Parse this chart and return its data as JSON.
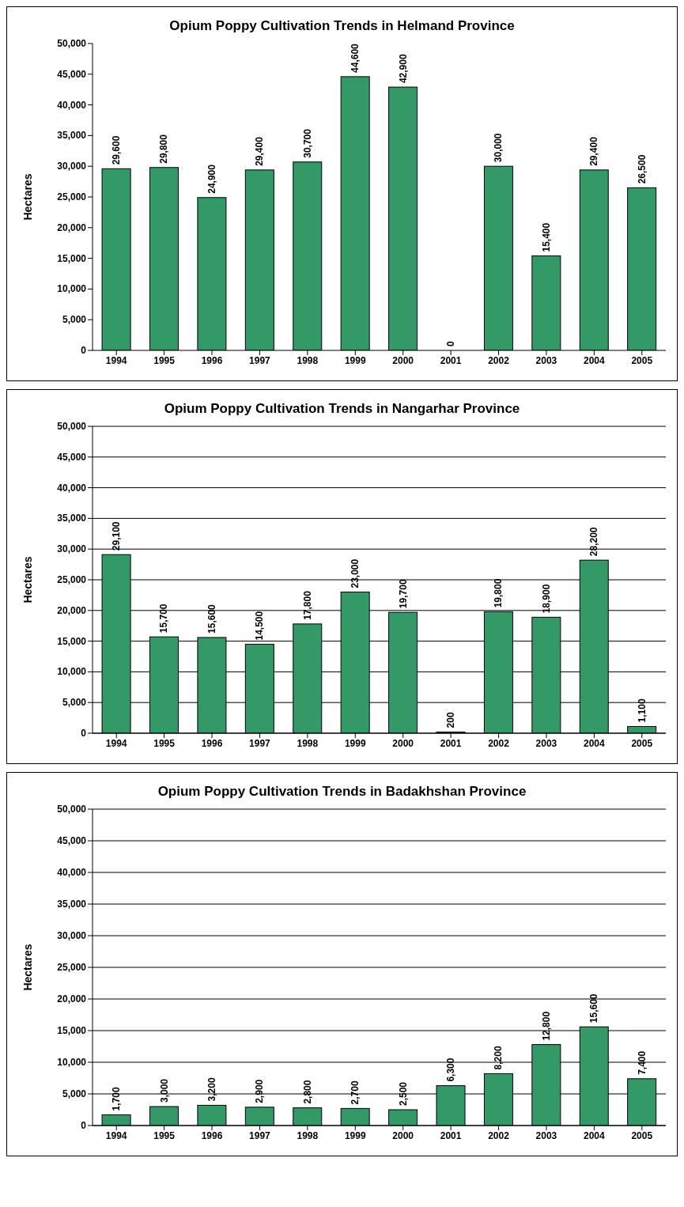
{
  "chart_data": [
    {
      "type": "bar",
      "title": "Opium Poppy Cultivation Trends in Helmand Province",
      "ylabel": "Hectares",
      "categories": [
        "1994",
        "1995",
        "1996",
        "1997",
        "1998",
        "1999",
        "2000",
        "2001",
        "2002",
        "2003",
        "2004",
        "2005"
      ],
      "values": [
        29600,
        29800,
        24900,
        29400,
        30700,
        44600,
        42900,
        0,
        30000,
        15400,
        29400,
        26500
      ],
      "value_labels": [
        "29,600",
        "29,800",
        "24,900",
        "29,400",
        "30,700",
        "44,600",
        "42,900",
        "0",
        "30,000",
        "15,400",
        "29,400",
        "26,500"
      ],
      "color": "#339966",
      "ylim": [
        0,
        50000
      ],
      "yticks": [
        {
          "value": 0,
          "label": "0"
        },
        {
          "value": 5000,
          "label": "5,000"
        },
        {
          "value": 10000,
          "label": "10,000"
        },
        {
          "value": 15000,
          "label": "15,000"
        },
        {
          "value": 20000,
          "label": "20,000"
        },
        {
          "value": 25000,
          "label": "25,000"
        },
        {
          "value": 30000,
          "label": "30,000"
        },
        {
          "value": 35000,
          "label": "35,000"
        },
        {
          "value": 40000,
          "label": "40,000"
        },
        {
          "value": 45000,
          "label": "45,000"
        },
        {
          "value": 50000,
          "label": "50,000"
        }
      ]
    },
    {
      "type": "bar",
      "title": "Opium Poppy Cultivation Trends in Nangarhar Province",
      "ylabel": "Hectares",
      "categories": [
        "1994",
        "1995",
        "1996",
        "1997",
        "1998",
        "1999",
        "2000",
        "2001",
        "2002",
        "2003",
        "2004",
        "2005"
      ],
      "values": [
        29100,
        15700,
        15600,
        14500,
        17800,
        23000,
        19700,
        200,
        19800,
        18900,
        28200,
        1100
      ],
      "value_labels": [
        "29,100",
        "15,700",
        "15,600",
        "14,500",
        "17,800",
        "23,000",
        "19,700",
        "200",
        "19,800",
        "18,900",
        "28,200",
        "1,100"
      ],
      "color": "#339966",
      "ylim": [
        0,
        50000
      ],
      "yticks": [
        {
          "value": 0,
          "label": "0"
        },
        {
          "value": 5000,
          "label": "5,000"
        },
        {
          "value": 10000,
          "label": "10,000"
        },
        {
          "value": 15000,
          "label": "15,000"
        },
        {
          "value": 20000,
          "label": "20,000"
        },
        {
          "value": 25000,
          "label": "25,000"
        },
        {
          "value": 30000,
          "label": "30,000"
        },
        {
          "value": 35000,
          "label": "35,000"
        },
        {
          "value": 40000,
          "label": "40,000"
        },
        {
          "value": 45000,
          "label": "45,000"
        },
        {
          "value": 50000,
          "label": "50,000"
        }
      ],
      "grid": "y"
    },
    {
      "type": "bar",
      "title": "Opium Poppy Cultivation Trends in Badakhshan Province",
      "ylabel": "Hectares",
      "categories": [
        "1994",
        "1995",
        "1996",
        "1997",
        "1998",
        "1999",
        "2000",
        "2001",
        "2002",
        "2003",
        "2004",
        "2005"
      ],
      "values": [
        1700,
        3000,
        3200,
        2900,
        2800,
        2700,
        2500,
        6300,
        8200,
        12800,
        15600,
        7400
      ],
      "value_labels": [
        "1,700",
        "3,000",
        "3,200",
        "2,900",
        "2,800",
        "2,700",
        "2,500",
        "6,300",
        "8,200",
        "12,800",
        "15,600",
        "7,400"
      ],
      "color": "#339966",
      "ylim": [
        0,
        50000
      ],
      "yticks": [
        {
          "value": 0,
          "label": "0"
        },
        {
          "value": 5000,
          "label": "5,000"
        },
        {
          "value": 10000,
          "label": "10,000"
        },
        {
          "value": 15000,
          "label": "15,000"
        },
        {
          "value": 20000,
          "label": "20,000"
        },
        {
          "value": 25000,
          "label": "25,000"
        },
        {
          "value": 30000,
          "label": "30,000"
        },
        {
          "value": 35000,
          "label": "35,000"
        },
        {
          "value": 40000,
          "label": "40,000"
        },
        {
          "value": 45000,
          "label": "45,000"
        },
        {
          "value": 50000,
          "label": "50,000"
        }
      ],
      "grid": "y"
    }
  ]
}
